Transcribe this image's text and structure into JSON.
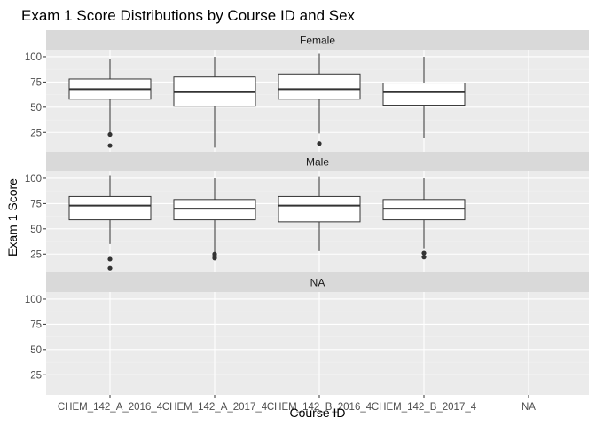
{
  "chart_data": {
    "type": "boxplot",
    "title": "Exam 1 Score Distributions by Course ID and Sex",
    "xlabel": "Course ID",
    "ylabel": "Exam 1 Score",
    "categories": [
      "CHEM_142_A_2016_4",
      "CHEM_142_A_2017_4",
      "CHEM_142_B_2016_4",
      "CHEM_142_B_2017_4",
      "NA"
    ],
    "y_ticks": [
      25,
      50,
      75,
      100
    ],
    "ylim": [
      5,
      107
    ],
    "facet_by": "rows",
    "facets": [
      {
        "label": "Female",
        "boxes": [
          {
            "category": "CHEM_142_A_2016_4",
            "min": 25,
            "q1": 58,
            "median": 68,
            "q3": 78,
            "max": 98,
            "outliers": [
              23,
              12
            ]
          },
          {
            "category": "CHEM_142_A_2017_4",
            "min": 10,
            "q1": 51,
            "median": 65,
            "q3": 80,
            "max": 100,
            "outliers": []
          },
          {
            "category": "CHEM_142_B_2016_4",
            "min": 24,
            "q1": 58,
            "median": 68,
            "q3": 83,
            "max": 103,
            "outliers": [
              14
            ]
          },
          {
            "category": "CHEM_142_B_2017_4",
            "min": 20,
            "q1": 52,
            "median": 65,
            "q3": 74,
            "max": 100,
            "outliers": []
          }
        ]
      },
      {
        "label": "Male",
        "boxes": [
          {
            "category": "CHEM_142_A_2016_4",
            "min": 35,
            "q1": 59,
            "median": 73,
            "q3": 82,
            "max": 103,
            "outliers": [
              20,
              11
            ]
          },
          {
            "category": "CHEM_142_A_2017_4",
            "min": 27,
            "q1": 59,
            "median": 70,
            "q3": 79,
            "max": 100,
            "outliers": [
              25,
              23,
              21
            ]
          },
          {
            "category": "CHEM_142_B_2016_4",
            "min": 28,
            "q1": 57,
            "median": 73,
            "q3": 82,
            "max": 102,
            "outliers": []
          },
          {
            "category": "CHEM_142_B_2017_4",
            "min": 30,
            "q1": 59,
            "median": 70,
            "q3": 79,
            "max": 100,
            "outliers": [
              26,
              22
            ]
          }
        ]
      },
      {
        "label": "NA",
        "boxes": []
      }
    ],
    "grid": true,
    "colors": {
      "panel_background": "#ebebeb",
      "grid_major": "#ffffff",
      "grid_minor": "#f2f2f2",
      "strip_background": "#d9d9d9",
      "box_fill": "#ffffff",
      "box_line": "#333333"
    }
  }
}
